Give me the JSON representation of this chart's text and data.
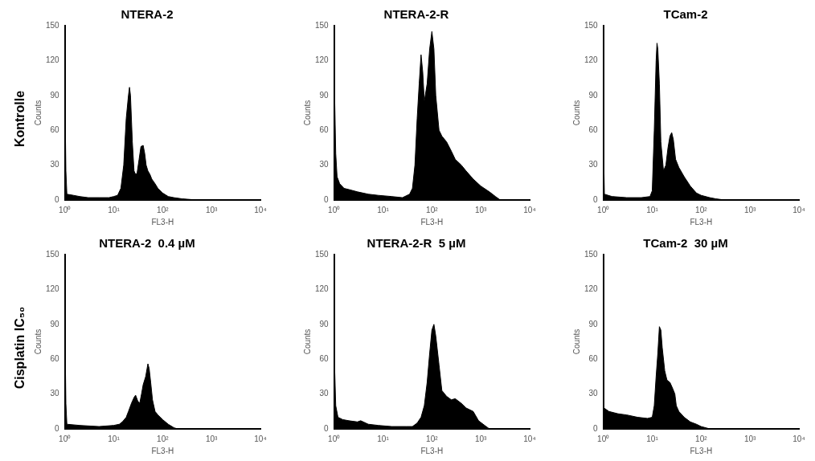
{
  "chart_data": [
    {
      "type": "area",
      "title": "NTERA-2",
      "xlabel": "FL3-H",
      "ylabel": "Counts",
      "annotations": [
        "Kontrolle"
      ],
      "log": "x",
      "grid": false,
      "legend": false,
      "color": "#000000",
      "xlim": [
        1,
        10000
      ],
      "xticks": [
        {
          "value": 1,
          "label": "10⁰"
        },
        {
          "value": 10,
          "label": "10¹"
        },
        {
          "value": 100,
          "label": "10²"
        },
        {
          "value": 1000,
          "label": "10³"
        },
        {
          "value": 10000,
          "label": "10⁴"
        }
      ],
      "ylim": [
        0,
        150
      ],
      "yticks": [
        0,
        30,
        60,
        90,
        120,
        150
      ],
      "x": [
        1,
        1.05,
        1.1,
        1.5,
        2,
        3,
        5,
        8,
        10,
        12,
        14,
        16,
        18,
        20,
        21,
        22,
        24,
        26,
        28,
        30,
        33,
        36,
        40,
        43,
        46,
        50,
        55,
        60,
        70,
        80,
        100,
        130,
        170,
        250,
        500,
        10000
      ],
      "values": [
        98,
        25,
        5,
        4,
        3,
        2,
        2,
        2,
        3,
        4,
        10,
        30,
        70,
        90,
        97,
        90,
        50,
        25,
        22,
        23,
        35,
        46,
        47,
        40,
        30,
        25,
        22,
        18,
        14,
        10,
        6,
        3,
        2,
        1,
        0,
        0
      ]
    },
    {
      "type": "area",
      "title": "NTERA-2-R",
      "xlabel": "FL3-H",
      "ylabel": "Counts",
      "log": "x",
      "grid": false,
      "legend": false,
      "color": "#000000",
      "xlim": [
        1,
        10000
      ],
      "xticks": [
        {
          "value": 1,
          "label": "10⁰"
        },
        {
          "value": 10,
          "label": "10¹"
        },
        {
          "value": 100,
          "label": "10²"
        },
        {
          "value": 1000,
          "label": "10³"
        },
        {
          "value": 10000,
          "label": "10⁴"
        }
      ],
      "ylim": [
        0,
        150
      ],
      "yticks": [
        0,
        30,
        60,
        90,
        120,
        150
      ],
      "x": [
        1,
        1.03,
        1.08,
        1.15,
        1.3,
        1.6,
        2,
        3,
        5,
        8,
        15,
        25,
        35,
        40,
        45,
        50,
        55,
        60,
        65,
        70,
        80,
        90,
        100,
        110,
        120,
        140,
        160,
        200,
        250,
        300,
        400,
        500,
        700,
        1000,
        1500,
        2000,
        2500,
        10000
      ],
      "values": [
        140,
        85,
        40,
        20,
        14,
        10,
        9,
        7,
        5,
        4,
        3,
        2,
        5,
        10,
        30,
        70,
        100,
        125,
        110,
        85,
        100,
        130,
        145,
        130,
        90,
        60,
        55,
        50,
        42,
        35,
        30,
        25,
        18,
        12,
        7,
        3,
        0,
        0
      ]
    },
    {
      "type": "area",
      "title": "TCam-2",
      "xlabel": "FL3-H",
      "ylabel": "Counts",
      "log": "x",
      "grid": false,
      "legend": false,
      "color": "#000000",
      "xlim": [
        1,
        10000
      ],
      "xticks": [
        {
          "value": 1,
          "label": "10⁰"
        },
        {
          "value": 10,
          "label": "10¹"
        },
        {
          "value": 100,
          "label": "10²"
        },
        {
          "value": 1000,
          "label": "10³"
        },
        {
          "value": 10000,
          "label": "10⁴"
        }
      ],
      "ylim": [
        0,
        150
      ],
      "yticks": [
        0,
        30,
        60,
        90,
        120,
        150
      ],
      "x": [
        1,
        1.05,
        1.5,
        3,
        6,
        9,
        10,
        11,
        12,
        12.5,
        13,
        14,
        15,
        17,
        19,
        21,
        23,
        25,
        27,
        30,
        35,
        45,
        60,
        80,
        100,
        150,
        200,
        300,
        10000
      ],
      "values": [
        55,
        5,
        3,
        2,
        2,
        3,
        8,
        60,
        120,
        135,
        130,
        100,
        50,
        25,
        30,
        45,
        55,
        58,
        52,
        35,
        28,
        20,
        12,
        6,
        4,
        2,
        1,
        0,
        0
      ]
    },
    {
      "type": "area",
      "title": "NTERA-2  0.4 µM",
      "xlabel": "FL3-H",
      "ylabel": "Counts",
      "annotations": [
        "Cisplatin IC₅₀"
      ],
      "log": "x",
      "grid": false,
      "legend": false,
      "color": "#000000",
      "xlim": [
        1,
        10000
      ],
      "xticks": [
        {
          "value": 1,
          "label": "10⁰"
        },
        {
          "value": 10,
          "label": "10¹"
        },
        {
          "value": 100,
          "label": "10²"
        },
        {
          "value": 1000,
          "label": "10³"
        },
        {
          "value": 10000,
          "label": "10⁴"
        }
      ],
      "ylim": [
        0,
        150
      ],
      "yticks": [
        0,
        30,
        60,
        90,
        120,
        150
      ],
      "x": [
        1,
        1.05,
        1.1,
        2,
        5,
        10,
        13,
        15,
        18,
        20,
        23,
        26,
        28,
        31,
        34,
        37,
        40,
        45,
        50,
        53,
        57,
        62,
        70,
        80,
        100,
        130,
        170,
        200,
        10000
      ],
      "values": [
        94,
        22,
        4,
        3,
        2,
        3,
        4,
        6,
        10,
        15,
        22,
        27,
        29,
        24,
        22,
        30,
        38,
        45,
        56,
        52,
        40,
        25,
        15,
        12,
        8,
        4,
        1,
        0,
        0
      ]
    },
    {
      "type": "area",
      "title": "NTERA-2-R  5 µM",
      "xlabel": "FL3-H",
      "ylabel": "Counts",
      "log": "x",
      "grid": false,
      "legend": false,
      "color": "#000000",
      "xlim": [
        1,
        10000
      ],
      "xticks": [
        {
          "value": 1,
          "label": "10⁰"
        },
        {
          "value": 10,
          "label": "10¹"
        },
        {
          "value": 100,
          "label": "10²"
        },
        {
          "value": 1000,
          "label": "10³"
        },
        {
          "value": 10000,
          "label": "10⁴"
        }
      ],
      "ylim": [
        0,
        150
      ],
      "yticks": [
        0,
        30,
        60,
        90,
        120,
        150
      ],
      "x": [
        1,
        1.03,
        1.08,
        1.2,
        1.5,
        2,
        3,
        3.5,
        5,
        8,
        15,
        30,
        40,
        50,
        60,
        70,
        80,
        90,
        100,
        110,
        120,
        140,
        160,
        200,
        250,
        300,
        400,
        500,
        700,
        900,
        1200,
        1500,
        10000
      ],
      "values": [
        110,
        50,
        20,
        10,
        8,
        7,
        6,
        7,
        4,
        3,
        2,
        2,
        2,
        5,
        10,
        20,
        40,
        65,
        85,
        90,
        80,
        55,
        33,
        28,
        25,
        26,
        22,
        18,
        15,
        7,
        3,
        0,
        0
      ]
    },
    {
      "type": "area",
      "title": "TCam-2  30 µM",
      "xlabel": "FL3-H",
      "ylabel": "Counts",
      "log": "x",
      "grid": false,
      "legend": false,
      "color": "#000000",
      "xlim": [
        1,
        10000
      ],
      "xticks": [
        {
          "value": 1,
          "label": "10⁰"
        },
        {
          "value": 10,
          "label": "10¹"
        },
        {
          "value": 100,
          "label": "10²"
        },
        {
          "value": 1000,
          "label": "10³"
        },
        {
          "value": 10000,
          "label": "10⁴"
        }
      ],
      "ylim": [
        0,
        150
      ],
      "yticks": [
        0,
        30,
        60,
        90,
        120,
        150
      ],
      "x": [
        1,
        1.03,
        1.3,
        2,
        3,
        5,
        8,
        10,
        11,
        12,
        13,
        14,
        15,
        16,
        18,
        20,
        23,
        26,
        29,
        31,
        35,
        45,
        60,
        80,
        100,
        150,
        10000
      ],
      "values": [
        60,
        18,
        15,
        13,
        12,
        10,
        9,
        10,
        20,
        45,
        65,
        88,
        85,
        70,
        50,
        42,
        40,
        35,
        30,
        20,
        15,
        10,
        6,
        4,
        2,
        0,
        0
      ]
    }
  ]
}
